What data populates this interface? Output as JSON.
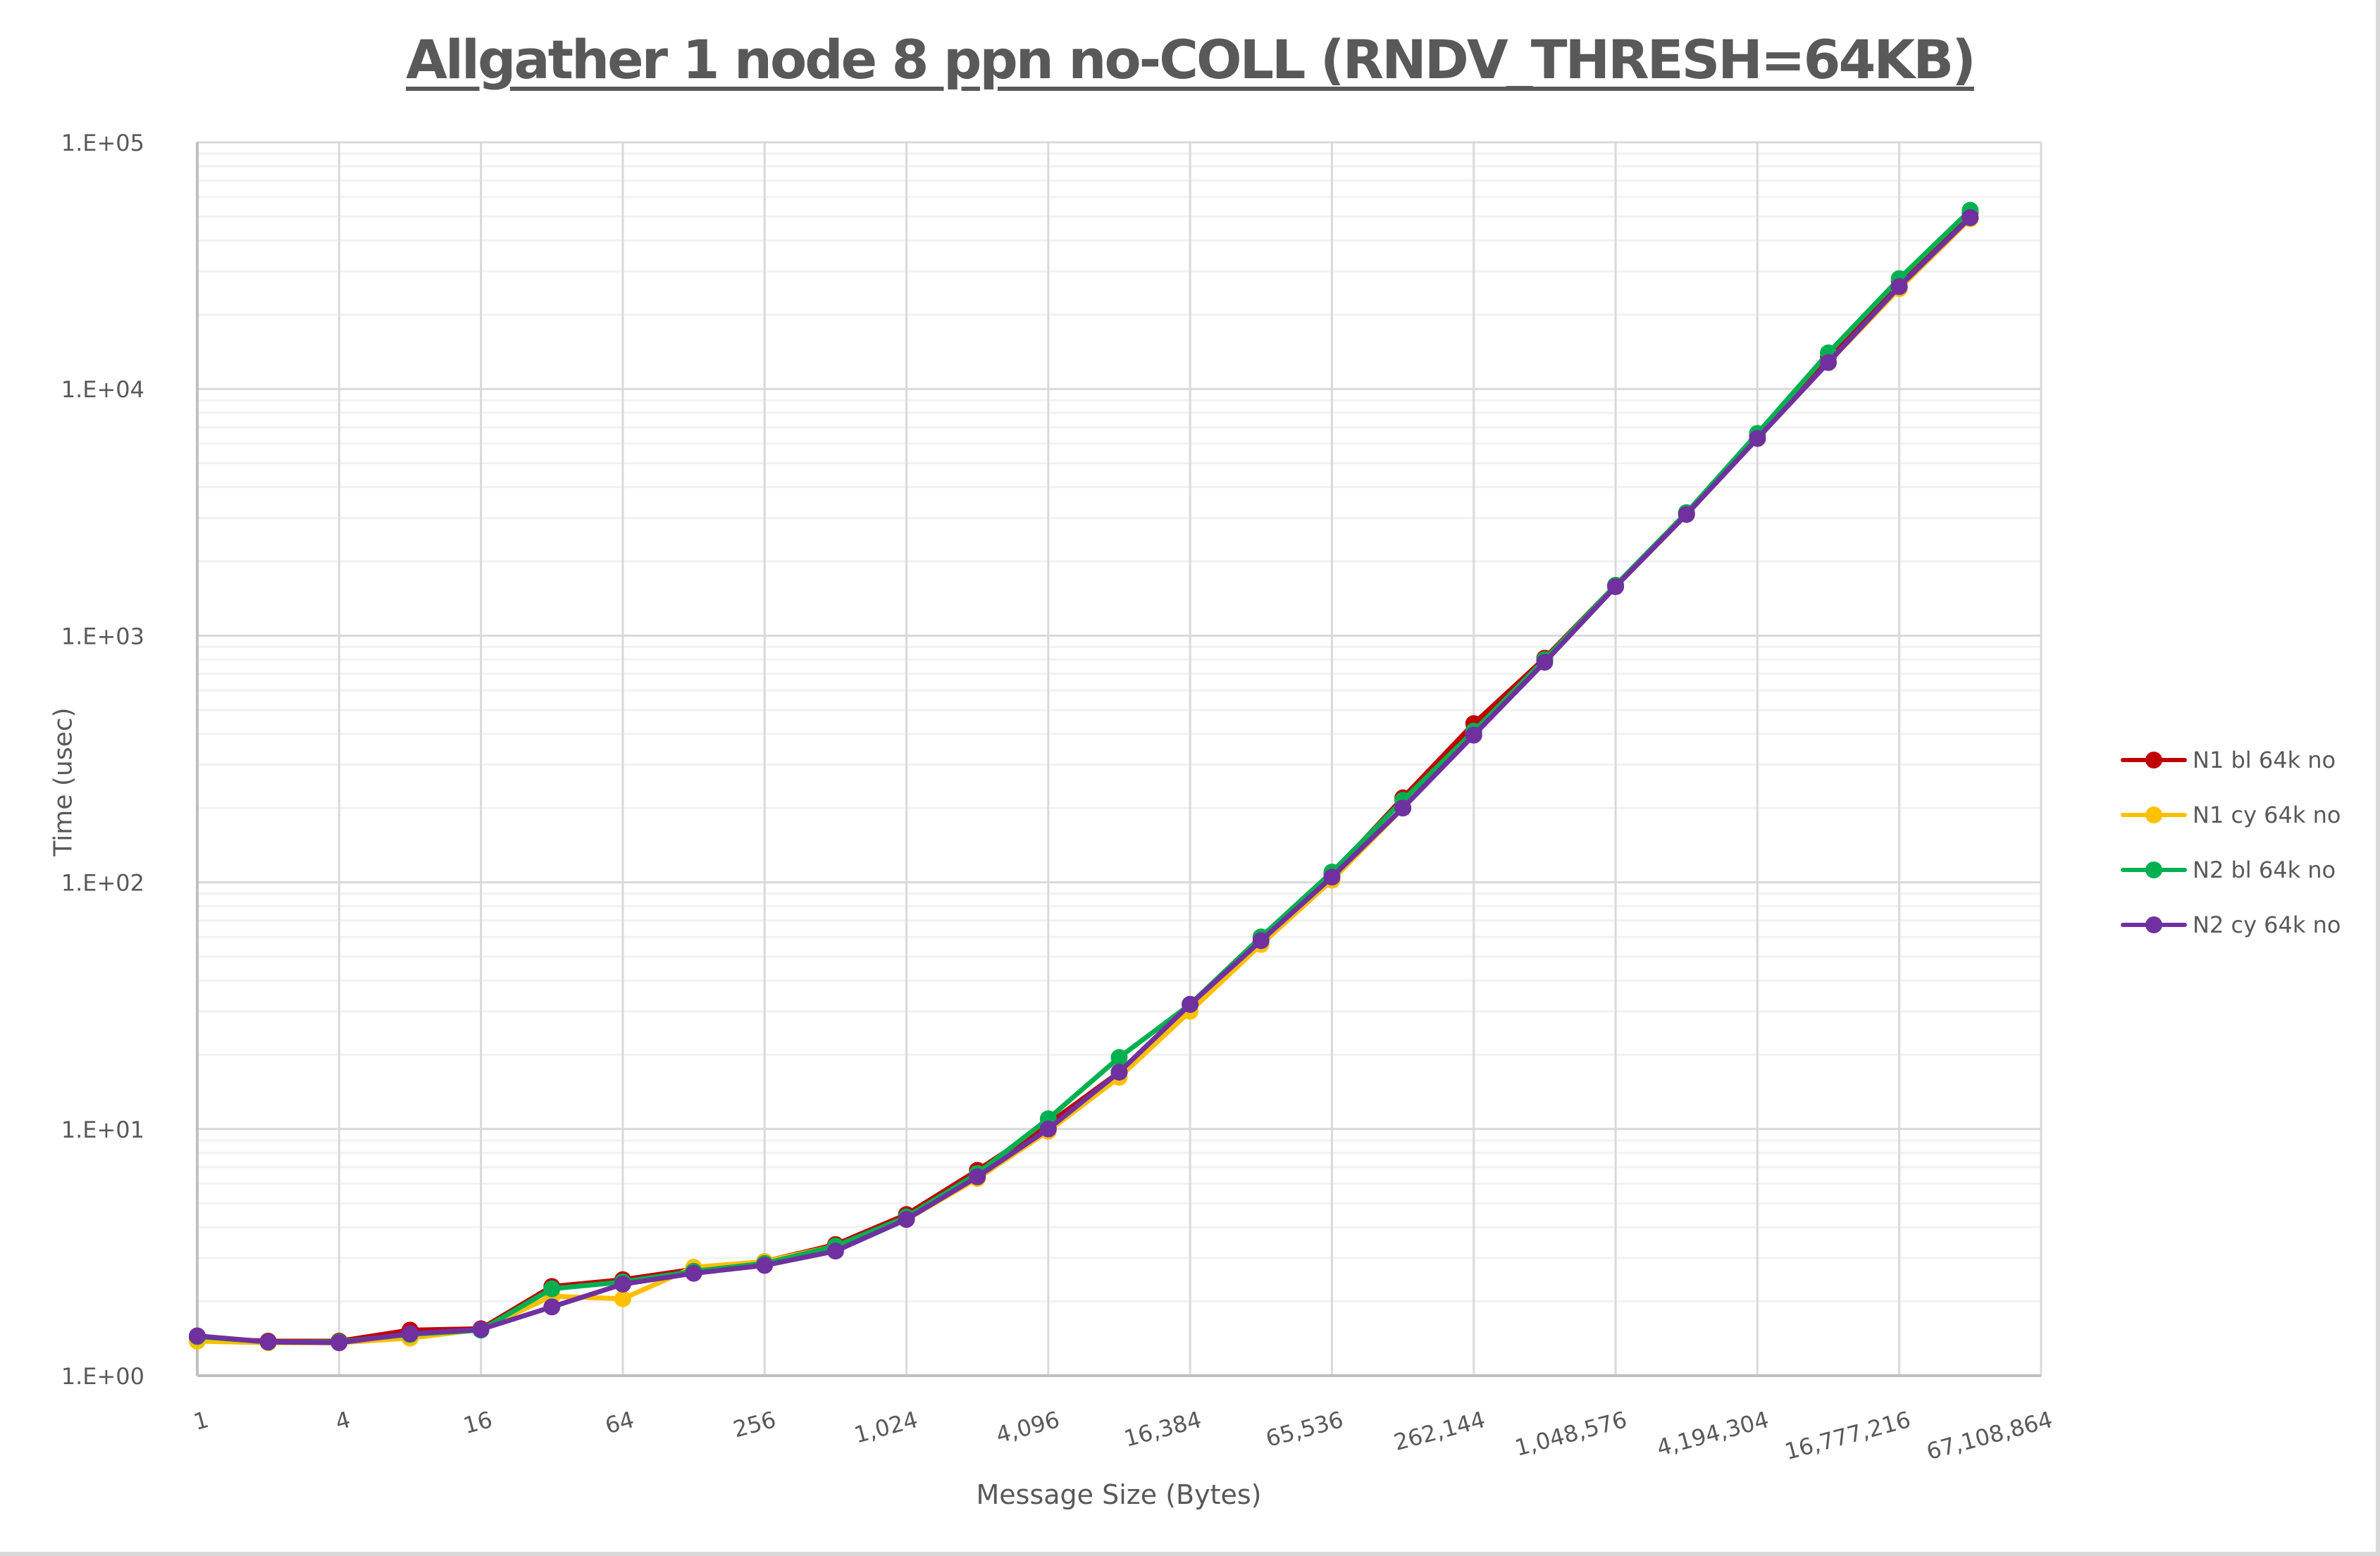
{
  "chart": {
    "title": "Allgather 1 node 8 ppn no-COLL (RNDV_THRESH=64KB)",
    "xlabel": "Message Size (Bytes)",
    "ylabel": "Time (usec)"
  },
  "legend": [
    {
      "label": "N1 bl 64k no",
      "color": "#c00000"
    },
    {
      "label": "N1 cy 64k no",
      "color": "#ffc000"
    },
    {
      "label": "N2 bl 64k no",
      "color": "#00b050"
    },
    {
      "label": "N2 cy 64k no",
      "color": "#7030a0"
    }
  ],
  "chart_data": {
    "type": "line",
    "title": "Allgather 1 node 8 ppn no-COLL (RNDV_THRESH=64KB)",
    "xlabel": "Message Size (Bytes)",
    "ylabel": "Time (usec)",
    "x_scale": "log2",
    "y_scale": "log10",
    "xlim": [
      1,
      67108864
    ],
    "ylim": [
      1,
      100000
    ],
    "grid": true,
    "legend_position": "right",
    "x_tick_labels": [
      "1",
      "4",
      "16",
      "64",
      "256",
      "1,024",
      "4,096",
      "16,384",
      "65,536",
      "262,144",
      "1,048,576",
      "4,194,304",
      "16,777,216",
      "67,108,864"
    ],
    "y_tick_labels": [
      "1.E+00",
      "1.E+01",
      "1.E+02",
      "1.E+03",
      "1.E+04",
      "1.E+05"
    ],
    "x": [
      1,
      2,
      4,
      8,
      16,
      32,
      64,
      128,
      256,
      512,
      1024,
      2048,
      4096,
      8192,
      16384,
      32768,
      65536,
      131072,
      262144,
      524288,
      1048576,
      2097152,
      4194304,
      8388608,
      16777216,
      33554432
    ],
    "series": [
      {
        "name": "N1 bl 64k no",
        "color": "#c00000",
        "values": [
          1.42,
          1.38,
          1.38,
          1.53,
          1.55,
          2.3,
          2.45,
          2.7,
          2.9,
          3.4,
          4.5,
          6.8,
          10.5,
          17,
          32,
          60,
          108,
          220,
          440,
          810,
          1600,
          3150,
          6500,
          13500,
          27500,
          52000
        ]
      },
      {
        "name": "N1 cy 64k no",
        "color": "#ffc000",
        "values": [
          1.38,
          1.36,
          1.36,
          1.42,
          1.54,
          2.1,
          2.05,
          2.75,
          2.9,
          3.35,
          4.3,
          6.3,
          9.8,
          16.2,
          30,
          56,
          102,
          200,
          400,
          790,
          1580,
          3100,
          6300,
          12800,
          25500,
          49000
        ]
      },
      {
        "name": "N2 bl 64k no",
        "color": "#00b050",
        "values": [
          1.44,
          1.37,
          1.37,
          1.47,
          1.53,
          2.25,
          2.4,
          2.65,
          2.85,
          3.35,
          4.4,
          6.6,
          11,
          19.5,
          32,
          60,
          110,
          215,
          410,
          800,
          1600,
          3150,
          6600,
          14000,
          28000,
          53000
        ]
      },
      {
        "name": "N2 cy 64k no",
        "color": "#7030a0",
        "values": [
          1.45,
          1.37,
          1.36,
          1.48,
          1.54,
          1.9,
          2.35,
          2.6,
          2.8,
          3.2,
          4.3,
          6.4,
          10,
          17,
          32,
          58,
          105,
          200,
          395,
          780,
          1580,
          3100,
          6300,
          12800,
          26000,
          49500
        ]
      }
    ]
  }
}
